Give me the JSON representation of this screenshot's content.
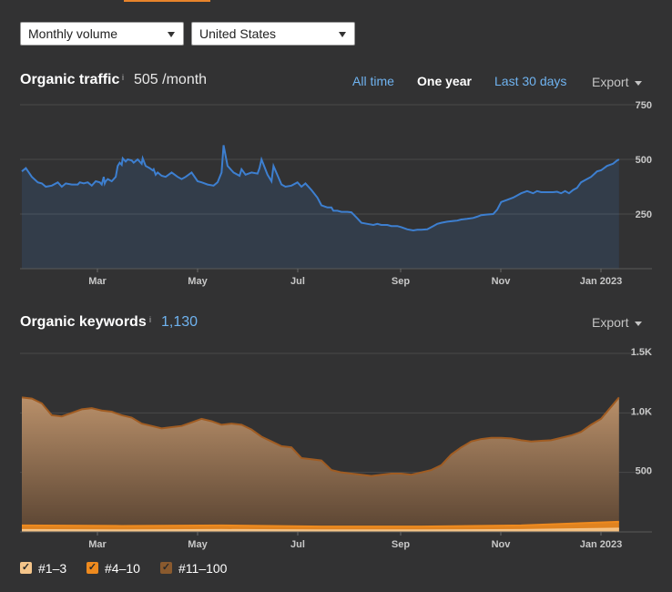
{
  "filters": {
    "metric_select": "Monthly volume",
    "country_select": "United States"
  },
  "traffic": {
    "title": "Organic traffic",
    "info_icon": "i",
    "value": "505 /month",
    "ranges": [
      "All time",
      "One year",
      "Last 30 days"
    ],
    "active_range": "One year",
    "export_label": "Export"
  },
  "keywords": {
    "title": "Organic keywords",
    "info_icon": "i",
    "value": "1,130",
    "export_label": "Export"
  },
  "legend": [
    {
      "label": "#1–3",
      "color": "#f5c58a",
      "checked": true
    },
    {
      "label": "#4–10",
      "color": "#ee8a1e",
      "checked": true
    },
    {
      "label": "#11–100",
      "color": "#8a5a2e",
      "checked": true
    }
  ],
  "chart_data": [
    {
      "type": "area",
      "title": "Organic traffic",
      "x_ticks": [
        "Mar",
        "May",
        "Jul",
        "Sep",
        "Nov",
        "Jan 2023"
      ],
      "y_ticks": [
        "250",
        "500",
        "750"
      ],
      "ylim": [
        0,
        750
      ],
      "color": "#3d7fd0",
      "series": [
        {
          "name": "Organic traffic",
          "x": [
            0,
            0.2,
            0.5,
            0.8,
            1.0,
            1.2,
            1.5,
            1.8,
            2.0,
            2.2,
            2.5,
            2.8,
            2.9,
            3.1,
            3.3,
            3.5,
            3.7,
            3.9,
            4.0,
            4.1,
            4.15,
            4.2,
            4.3,
            4.5,
            4.7,
            4.8,
            4.9,
            5.0,
            5.05,
            5.2,
            5.3,
            5.5,
            5.6,
            5.8,
            5.9,
            6.0,
            6.05,
            6.2,
            6.4,
            6.55,
            6.6,
            6.7,
            6.8,
            7.0,
            7.2,
            7.5,
            7.8,
            8.0,
            8.2,
            8.5,
            8.8,
            9.0,
            9.3,
            9.6,
            9.8,
            10.0,
            10.1,
            10.3,
            10.6,
            10.9,
            11.0,
            11.2,
            11.5,
            11.8,
            11.9,
            12.0,
            12.3,
            12.5,
            12.6,
            13.0,
            13.2,
            13.5,
            13.8,
            14.0,
            14.2,
            14.5,
            14.8,
            15.0,
            15.3,
            15.5,
            15.6,
            15.8,
            16.0,
            16.3,
            16.5,
            16.8,
            17.0,
            17.3,
            17.6,
            17.8,
            18.0,
            18.3,
            18.5,
            18.8,
            19.0,
            19.3,
            19.6,
            19.8,
            20.0,
            20.3,
            20.6,
            20.8,
            21.0,
            21.3,
            21.6,
            21.8,
            22.0,
            22.3,
            22.6,
            22.8,
            23.0,
            23.3,
            23.6,
            23.8,
            24.0,
            24.3,
            24.6,
            24.8,
            25.0,
            25.3,
            25.6,
            25.8,
            26.0,
            26.3,
            26.6,
            26.8,
            27.0,
            27.2,
            27.4,
            27.6,
            27.8,
            28.0,
            28.2,
            28.5,
            28.8,
            29.0,
            29.3,
            29.6,
            29.8,
            29.9
          ],
          "values": [
            445,
            460,
            420,
            395,
            390,
            375,
            380,
            395,
            375,
            390,
            385,
            385,
            395,
            390,
            395,
            380,
            400,
            395,
            385,
            420,
            390,
            400,
            410,
            400,
            420,
            470,
            485,
            475,
            505,
            490,
            500,
            495,
            485,
            500,
            490,
            480,
            505,
            470,
            460,
            450,
            455,
            430,
            440,
            425,
            420,
            440,
            420,
            410,
            420,
            440,
            400,
            395,
            385,
            380,
            395,
            440,
            565,
            470,
            440,
            425,
            455,
            430,
            440,
            435,
            460,
            500,
            430,
            400,
            470,
            385,
            375,
            380,
            395,
            375,
            390,
            360,
            325,
            290,
            280,
            280,
            265,
            265,
            260,
            260,
            258,
            230,
            210,
            205,
            200,
            205,
            200,
            200,
            195,
            195,
            190,
            180,
            175,
            178,
            178,
            180,
            195,
            205,
            210,
            215,
            218,
            220,
            225,
            228,
            232,
            238,
            245,
            248,
            250,
            270,
            305,
            315,
            325,
            335,
            345,
            355,
            345,
            355,
            350,
            350,
            350,
            352,
            345,
            355,
            345,
            360,
            370,
            395,
            405,
            420,
            445,
            450,
            470,
            480,
            495,
            500
          ]
        }
      ]
    },
    {
      "type": "area",
      "title": "Organic keywords",
      "x_ticks": [
        "Mar",
        "May",
        "Jul",
        "Sep",
        "Nov",
        "Jan 2023"
      ],
      "y_ticks": [
        "500",
        "1.0K",
        "1.5K"
      ],
      "ylim": [
        0,
        1500
      ],
      "series": [
        {
          "name": "#11–100",
          "x": [
            0,
            0.5,
            1.0,
            1.5,
            2.0,
            2.5,
            3.0,
            3.5,
            4.0,
            4.5,
            5.0,
            5.5,
            6.0,
            6.5,
            7.0,
            7.5,
            8.0,
            8.5,
            9.0,
            9.5,
            10.0,
            10.5,
            11.0,
            11.5,
            12.0,
            12.5,
            13.0,
            13.5,
            14.0,
            14.5,
            15.0,
            15.5,
            16.0,
            16.5,
            17.0,
            17.5,
            18.0,
            18.5,
            19.0,
            19.5,
            20.0,
            20.5,
            21.0,
            21.5,
            22.0,
            22.5,
            23.0,
            23.5,
            24.0,
            24.5,
            25.0,
            25.5,
            26.0,
            26.5,
            27.0,
            27.5,
            28.0,
            28.5,
            29.0,
            29.5,
            29.9
          ],
          "values": [
            1130,
            1120,
            1080,
            980,
            970,
            1000,
            1030,
            1040,
            1020,
            1010,
            980,
            960,
            910,
            890,
            870,
            880,
            890,
            920,
            950,
            930,
            900,
            910,
            900,
            860,
            800,
            760,
            720,
            710,
            620,
            610,
            600,
            520,
            500,
            490,
            480,
            470,
            480,
            490,
            490,
            480,
            500,
            520,
            560,
            650,
            710,
            760,
            780,
            790,
            790,
            785,
            770,
            760,
            765,
            770,
            790,
            810,
            840,
            900,
            950,
            1050,
            1130
          ]
        },
        {
          "name": "#4–10",
          "x": [
            0,
            5,
            10,
            15,
            20,
            25,
            29.9
          ],
          "values": [
            55,
            50,
            55,
            45,
            45,
            55,
            85
          ]
        },
        {
          "name": "#1–3",
          "x": [
            0,
            5,
            10,
            15,
            20,
            25,
            29.9
          ],
          "values": [
            18,
            15,
            18,
            15,
            15,
            18,
            30
          ]
        }
      ]
    }
  ]
}
